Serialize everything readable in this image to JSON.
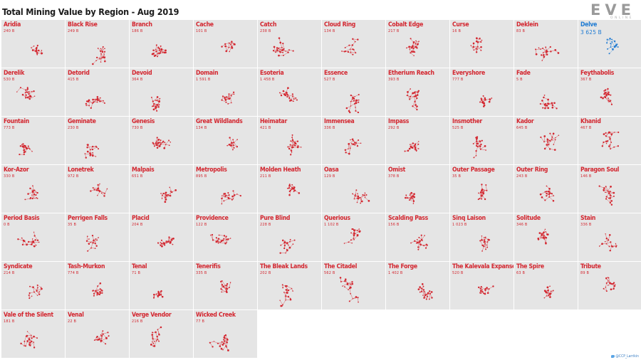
{
  "title": "Total Mining Value by Region - Aug 2019",
  "logo": {
    "word": "EVE",
    "sub": "ONLINE"
  },
  "credit": "@CCP_Larrikin",
  "colors": {
    "normal": "#d3262f",
    "highlight": "#1e7ad2",
    "tile_bg": "#e5e5e5"
  },
  "chart_data": {
    "type": "small-multiples",
    "title": "Total Mining Value by Region - Aug 2019",
    "unit": "B",
    "highlighted": "Delve",
    "regions": [
      {
        "name": "Aridia",
        "value": "240 B"
      },
      {
        "name": "Black Rise",
        "value": "249 B"
      },
      {
        "name": "Branch",
        "value": "186 B"
      },
      {
        "name": "Cache",
        "value": "101 B"
      },
      {
        "name": "Catch",
        "value": "238 B"
      },
      {
        "name": "Cloud Ring",
        "value": "134 B"
      },
      {
        "name": "Cobalt Edge",
        "value": "217 B"
      },
      {
        "name": "Curse",
        "value": "16 B"
      },
      {
        "name": "Deklein",
        "value": "83 B"
      },
      {
        "name": "Delve",
        "value": "3 625 B"
      },
      {
        "name": "Derelik",
        "value": "530 B"
      },
      {
        "name": "Detorid",
        "value": "415 B"
      },
      {
        "name": "Devoid",
        "value": "364 B"
      },
      {
        "name": "Domain",
        "value": "1 591 B"
      },
      {
        "name": "Esoteria",
        "value": "1 458 B"
      },
      {
        "name": "Essence",
        "value": "527 B"
      },
      {
        "name": "Etherium Reach",
        "value": "393 B"
      },
      {
        "name": "Everyshore",
        "value": "777 B"
      },
      {
        "name": "Fade",
        "value": "5 B"
      },
      {
        "name": "Feythabolis",
        "value": "367 B"
      },
      {
        "name": "Fountain",
        "value": "773 B"
      },
      {
        "name": "Geminate",
        "value": "230 B"
      },
      {
        "name": "Genesis",
        "value": "730 B"
      },
      {
        "name": "Great Wildlands",
        "value": "134 B"
      },
      {
        "name": "Heimatar",
        "value": "421 B"
      },
      {
        "name": "Immensea",
        "value": "336 B"
      },
      {
        "name": "Impass",
        "value": "292 B"
      },
      {
        "name": "Insmother",
        "value": "525 B"
      },
      {
        "name": "Kador",
        "value": "645 B"
      },
      {
        "name": "Khanid",
        "value": "467 B"
      },
      {
        "name": "Kor-Azor",
        "value": "330 B"
      },
      {
        "name": "Lonetrek",
        "value": "972 B"
      },
      {
        "name": "Malpais",
        "value": "651 B"
      },
      {
        "name": "Metropolis",
        "value": "895 B"
      },
      {
        "name": "Molden Heath",
        "value": "211 B"
      },
      {
        "name": "Oasa",
        "value": "129 B"
      },
      {
        "name": "Omist",
        "value": "378 B"
      },
      {
        "name": "Outer Passage",
        "value": "35 B"
      },
      {
        "name": "Outer Ring",
        "value": "243 B"
      },
      {
        "name": "Paragon Soul",
        "value": "146 B"
      },
      {
        "name": "Period Basis",
        "value": "0 B"
      },
      {
        "name": "Perrigen Falls",
        "value": "35 B"
      },
      {
        "name": "Placid",
        "value": "204 B"
      },
      {
        "name": "Providence",
        "value": "122 B"
      },
      {
        "name": "Pure Blind",
        "value": "228 B"
      },
      {
        "name": "Querious",
        "value": "1 102 B"
      },
      {
        "name": "Scalding Pass",
        "value": "156 B"
      },
      {
        "name": "Sinq Laison",
        "value": "1 023 B"
      },
      {
        "name": "Solitude",
        "value": "346 B"
      },
      {
        "name": "Stain",
        "value": "336 B"
      },
      {
        "name": "Syndicate",
        "value": "214 B"
      },
      {
        "name": "Tash-Murkon",
        "value": "774 B"
      },
      {
        "name": "Tenal",
        "value": "71 B"
      },
      {
        "name": "Tenerifis",
        "value": "335 B"
      },
      {
        "name": "The Bleak Lands",
        "value": "202 B"
      },
      {
        "name": "The Citadel",
        "value": "562 B"
      },
      {
        "name": "The Forge",
        "value": "1 402 B"
      },
      {
        "name": "The Kalevala Expanse",
        "value": "520 B"
      },
      {
        "name": "The Spire",
        "value": "63 B"
      },
      {
        "name": "Tribute",
        "value": "89 B"
      },
      {
        "name": "Vale of the Silent",
        "value": "181 B"
      },
      {
        "name": "Venal",
        "value": "22 B"
      },
      {
        "name": "Verge Vendor",
        "value": "216 B"
      },
      {
        "name": "Wicked Creek",
        "value": "77 B"
      }
    ]
  }
}
